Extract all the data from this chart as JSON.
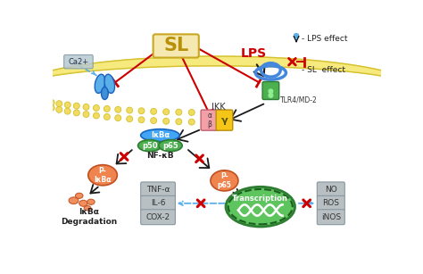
{
  "bg_color": "#ffffff",
  "sl_text": "SL",
  "lps_text": "LPS",
  "lps_color": "#cc0000",
  "tlr_text": "TLR4/MD-2",
  "ca_text": "Ca2+",
  "ikk_text": "IKK",
  "nfkb_text": "NF-κB",
  "ikba_text": "IκBα",
  "p50_text": "p50",
  "p65_text": "p65",
  "p_ikba_text": "P-\nIκBα",
  "p_p65_text": "P-\np65",
  "transcription_text": "Transcription",
  "degradation_text": "IκBα\nDegradation",
  "tnfa_text": "TNF-α",
  "il6_text": "IL-6",
  "cox2_text": "COX-2",
  "no_text": "NO",
  "ros_text": "ROS",
  "inos_text": "iNOS",
  "legend_lps": "- LPS effect",
  "legend_sl": "- SL  effect",
  "orange_color": "#f0844e",
  "green_color": "#4caf50",
  "blue_color": "#5aafe8",
  "arrow_color": "#1a1a1a",
  "red_color": "#cc0000",
  "blue_dash_color": "#5aafe8",
  "mem_fill": "#f5e870",
  "mem_circle": "#f0dc60",
  "mem_edge": "#d4c030",
  "sl_fill": "#f5e8b0",
  "sl_edge": "#c8a820",
  "ca_fill": "#b8c8d0",
  "ca_edge": "#7898a8",
  "gray_fill": "#b8c0c4",
  "gray_edge": "#8898a0",
  "ikk_alpha_fill": "#f4a0a8",
  "ikk_gamma_fill": "#f5c518",
  "tlr_blue": "#4488dd",
  "tlr_green": "#4caf50"
}
